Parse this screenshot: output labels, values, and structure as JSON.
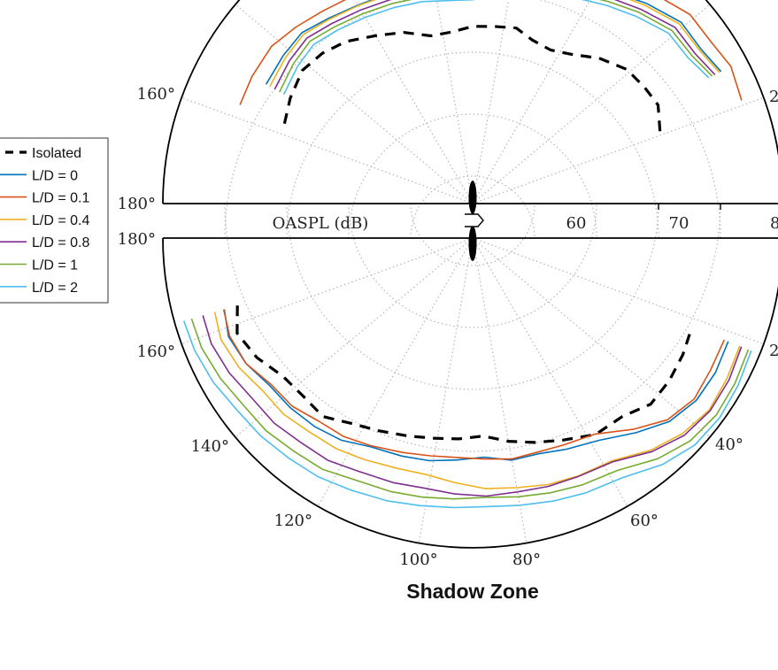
{
  "chart_data": {
    "type": "line",
    "subtype": "polar",
    "title": "Shadow Zone",
    "rlabel": "OASPL (dB)",
    "r_ticks": [
      "60",
      "70",
      "8"
    ],
    "r_range": [
      30,
      80
    ],
    "upper_half": {
      "angle_labels": [
        "160°",
        "180°",
        "2"
      ]
    },
    "lower_half": {
      "angle_labels": [
        "180°",
        "160°",
        "140°",
        "120°",
        "100°",
        "80°",
        "60°",
        "40°",
        "2"
      ]
    },
    "grid": true,
    "legend_position": "left",
    "series": [
      {
        "name": "Isolated",
        "style": "dashed",
        "color": "#000000",
        "upper": [
          [
            157,
            63.0
          ],
          [
            150,
            64.0
          ],
          [
            142,
            64.9
          ],
          [
            135,
            64.3
          ],
          [
            128,
            63.2
          ],
          [
            120,
            61.3
          ],
          [
            112,
            59.8
          ],
          [
            104,
            57.9
          ],
          [
            97,
            57.9
          ],
          [
            90,
            58.6
          ],
          [
            83,
            58.8
          ],
          [
            76,
            59.2
          ],
          [
            70,
            58.1
          ],
          [
            63,
            57.8
          ],
          [
            56,
            59.0
          ],
          [
            49,
            61.1
          ],
          [
            41,
            63.0
          ],
          [
            34,
            63.5
          ],
          [
            28,
            63.9
          ],
          [
            21,
            62.4
          ]
        ],
        "lower": [
          [
            164,
            69.5
          ],
          [
            158,
            71.0
          ],
          [
            151,
            69.8
          ],
          [
            144,
            67.9
          ],
          [
            137,
            67.4
          ],
          [
            130,
            67.6
          ],
          [
            123,
            65.7
          ],
          [
            116,
            64.6
          ],
          [
            108,
            63.6
          ],
          [
            101,
            62.9
          ],
          [
            94,
            62.5
          ],
          [
            87,
            62.0
          ],
          [
            80,
            63.3
          ],
          [
            73,
            64.5
          ],
          [
            66,
            65.7
          ],
          [
            58,
            67.4
          ],
          [
            50,
            67.6
          ],
          [
            43,
            69.3
          ],
          [
            36,
            69.2
          ],
          [
            29,
            68.8
          ],
          [
            22,
            68.2
          ]
        ]
      },
      {
        "name": "L/D = 0",
        "style": "solid",
        "color": "#0072BD",
        "upper": [
          [
            150,
            68.5
          ],
          [
            142,
            68.8
          ],
          [
            135,
            69.0
          ],
          [
            128,
            67.9
          ],
          [
            120,
            67.0
          ],
          [
            112,
            66.5
          ],
          [
            104,
            66.0
          ],
          [
            97,
            65.5
          ],
          [
            90,
            65.5
          ],
          [
            83,
            66.2
          ],
          [
            76,
            67.1
          ],
          [
            70,
            68.4
          ],
          [
            63,
            69.7
          ],
          [
            56,
            71.1
          ],
          [
            49,
            72.8
          ],
          [
            41,
            74.6
          ],
          [
            34,
            74.5
          ],
          [
            28,
            75.4
          ]
        ],
        "lower": [
          [
            164,
            71.7
          ],
          [
            158,
            72.5
          ],
          [
            151,
            71.8
          ],
          [
            144,
            70.5
          ],
          [
            137,
            70.2
          ],
          [
            130,
            69.7
          ],
          [
            123,
            68.9
          ],
          [
            116,
            67.5
          ],
          [
            108,
            67.0
          ],
          [
            101,
            66.6
          ],
          [
            94,
            65.9
          ],
          [
            87,
            65.4
          ],
          [
            80,
            66.4
          ],
          [
            73,
            66.4
          ],
          [
            66,
            67.3
          ],
          [
            58,
            68.5
          ],
          [
            50,
            71.0
          ],
          [
            43,
            73.4
          ],
          [
            36,
            74.6
          ],
          [
            29,
            74.8
          ],
          [
            22,
            74.5
          ]
        ]
      },
      {
        "name": "L/D = 0.1",
        "style": "solid",
        "color": "#D95319",
        "upper": [
          [
            157,
            70.8
          ],
          [
            150,
            71.1
          ],
          [
            142,
            71.2
          ],
          [
            135,
            70.3
          ],
          [
            128,
            69.4
          ],
          [
            120,
            68.7
          ],
          [
            112,
            67.9
          ],
          [
            104,
            67.8
          ],
          [
            97,
            67.7
          ],
          [
            90,
            67.8
          ],
          [
            83,
            68.5
          ],
          [
            76,
            69.5
          ],
          [
            70,
            70.6
          ],
          [
            63,
            71.8
          ],
          [
            56,
            73.2
          ],
          [
            49,
            74.8
          ],
          [
            41,
            76.5
          ],
          [
            34,
            76.5
          ],
          [
            28,
            77.2
          ],
          [
            21,
            76.5
          ]
        ],
        "lower": [
          [
            164,
            71.8
          ],
          [
            158,
            72.3
          ],
          [
            151,
            71.8
          ],
          [
            144,
            70.2
          ],
          [
            137,
            69.8
          ],
          [
            130,
            68.6
          ],
          [
            123,
            68.2
          ],
          [
            116,
            67.3
          ],
          [
            108,
            66.4
          ],
          [
            101,
            65.8
          ],
          [
            94,
            65.5
          ],
          [
            87,
            65.7
          ],
          [
            80,
            66.2
          ],
          [
            73,
            66.1
          ],
          [
            66,
            66.5
          ],
          [
            58,
            67.3
          ],
          [
            50,
            70.3
          ],
          [
            43,
            73.0
          ],
          [
            36,
            74.2
          ],
          [
            29,
            73.9
          ],
          [
            22,
            73.8
          ]
        ]
      },
      {
        "name": "L/D = 0.4",
        "style": "solid",
        "color": "#EDB120",
        "upper": [
          [
            150,
            67.8
          ],
          [
            142,
            68.3
          ],
          [
            135,
            68.6
          ],
          [
            128,
            67.7
          ],
          [
            120,
            66.9
          ],
          [
            112,
            66.3
          ],
          [
            104,
            65.8
          ],
          [
            97,
            65.2
          ],
          [
            90,
            65.2
          ],
          [
            83,
            66.0
          ],
          [
            76,
            67.1
          ],
          [
            70,
            68.2
          ],
          [
            63,
            69.4
          ],
          [
            56,
            70.9
          ],
          [
            49,
            72.4
          ],
          [
            41,
            74.2
          ],
          [
            34,
            74.2
          ],
          [
            28,
            75.1
          ]
        ],
        "lower": [
          [
            164,
            73.3
          ],
          [
            158,
            73.8
          ],
          [
            151,
            73.1
          ],
          [
            144,
            71.9
          ],
          [
            137,
            71.7
          ],
          [
            130,
            70.9
          ],
          [
            123,
            70.5
          ],
          [
            116,
            69.8
          ],
          [
            108,
            69.1
          ],
          [
            101,
            68.9
          ],
          [
            94,
            69.6
          ],
          [
            87,
            70.5
          ],
          [
            80,
            70.9
          ],
          [
            73,
            71.6
          ],
          [
            66,
            72.0
          ],
          [
            58,
            72.4
          ],
          [
            50,
            74.7
          ],
          [
            43,
            76.3
          ],
          [
            36,
            77.2
          ],
          [
            29,
            76.9
          ],
          [
            22,
            76.5
          ]
        ]
      },
      {
        "name": "L/D = 0.8",
        "style": "solid",
        "color": "#7E2F8E",
        "upper": [
          [
            150,
            66.9
          ],
          [
            142,
            67.5
          ],
          [
            135,
            67.8
          ],
          [
            128,
            66.9
          ],
          [
            120,
            66.1
          ],
          [
            112,
            65.5
          ],
          [
            104,
            65.0
          ],
          [
            97,
            64.5
          ],
          [
            90,
            64.4
          ],
          [
            83,
            65.3
          ],
          [
            76,
            66.3
          ],
          [
            70,
            67.4
          ],
          [
            63,
            68.6
          ],
          [
            56,
            70.0
          ],
          [
            49,
            71.5
          ],
          [
            41,
            73.3
          ],
          [
            34,
            73.3
          ],
          [
            28,
            74.3
          ]
        ],
        "lower": [
          [
            164,
            75.3
          ],
          [
            158,
            75.5
          ],
          [
            151,
            74.9
          ],
          [
            144,
            74.0
          ],
          [
            137,
            73.8
          ],
          [
            130,
            73.1
          ],
          [
            123,
            72.8
          ],
          [
            116,
            71.9
          ],
          [
            108,
            71.5
          ],
          [
            101,
            71.1
          ],
          [
            94,
            71.4
          ],
          [
            87,
            71.7
          ],
          [
            80,
            71.6
          ],
          [
            73,
            71.9
          ],
          [
            66,
            72.1
          ],
          [
            58,
            72.6
          ],
          [
            50,
            75.0
          ],
          [
            43,
            76.7
          ],
          [
            36,
            77.4
          ],
          [
            29,
            77.3
          ],
          [
            22,
            76.8
          ]
        ]
      },
      {
        "name": "L/D = 1",
        "style": "solid",
        "color": "#77AC30",
        "upper": [
          [
            150,
            66.0
          ],
          [
            142,
            66.7
          ],
          [
            135,
            67.1
          ],
          [
            128,
            66.2
          ],
          [
            120,
            65.4
          ],
          [
            112,
            64.8
          ],
          [
            104,
            64.3
          ],
          [
            97,
            63.8
          ],
          [
            90,
            63.7
          ],
          [
            83,
            64.6
          ],
          [
            76,
            65.7
          ],
          [
            70,
            66.8
          ],
          [
            63,
            67.9
          ],
          [
            56,
            69.3
          ],
          [
            49,
            70.9
          ],
          [
            41,
            72.6
          ],
          [
            34,
            72.7
          ],
          [
            28,
            73.8
          ]
        ],
        "lower": [
          [
            164,
            77.2
          ],
          [
            158,
            77.2
          ],
          [
            151,
            76.6
          ],
          [
            144,
            75.8
          ],
          [
            137,
            75.6
          ],
          [
            130,
            74.9
          ],
          [
            123,
            74.5
          ],
          [
            116,
            73.4
          ],
          [
            108,
            73.0
          ],
          [
            101,
            72.6
          ],
          [
            94,
            72.2
          ],
          [
            87,
            71.9
          ],
          [
            80,
            72.4
          ],
          [
            73,
            73.0
          ],
          [
            66,
            73.6
          ],
          [
            58,
            74.2
          ],
          [
            50,
            76.5
          ],
          [
            43,
            78.0
          ],
          [
            36,
            78.6
          ],
          [
            29,
            78.4
          ],
          [
            22,
            78.0
          ]
        ]
      },
      {
        "name": "L/D = 2",
        "style": "solid",
        "color": "#4DBEEE",
        "upper": [
          [
            150,
            65.2
          ],
          [
            142,
            65.9
          ],
          [
            135,
            66.3
          ],
          [
            128,
            65.5
          ],
          [
            120,
            64.7
          ],
          [
            112,
            64.1
          ],
          [
            104,
            63.6
          ],
          [
            97,
            63.0
          ],
          [
            90,
            62.9
          ],
          [
            83,
            63.8
          ],
          [
            76,
            64.9
          ],
          [
            70,
            66.0
          ],
          [
            63,
            67.2
          ],
          [
            56,
            68.6
          ],
          [
            49,
            70.1
          ],
          [
            41,
            71.9
          ],
          [
            34,
            72.0
          ],
          [
            28,
            73.2
          ]
        ],
        "lower": [
          [
            164,
            78.5
          ],
          [
            158,
            78.4
          ],
          [
            151,
            77.9
          ],
          [
            144,
            77.1
          ],
          [
            137,
            76.8
          ],
          [
            130,
            76.3
          ],
          [
            123,
            75.9
          ],
          [
            116,
            75.2
          ],
          [
            108,
            74.6
          ],
          [
            101,
            74.0
          ],
          [
            94,
            73.6
          ],
          [
            87,
            73.4
          ],
          [
            80,
            73.8
          ],
          [
            73,
            74.4
          ],
          [
            66,
            75.0
          ],
          [
            58,
            75.6
          ],
          [
            50,
            77.7
          ],
          [
            43,
            79.0
          ],
          [
            36,
            79.3
          ],
          [
            29,
            79.0
          ],
          [
            22,
            78.5
          ]
        ]
      }
    ]
  }
}
